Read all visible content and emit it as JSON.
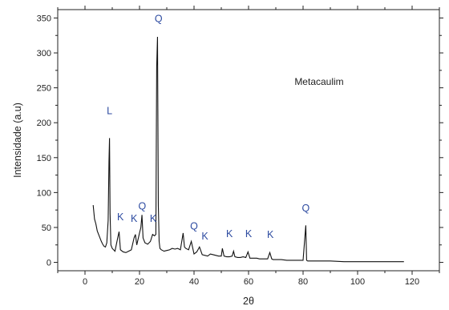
{
  "chart_data": {
    "type": "line",
    "title": "",
    "xlabel": "2θ",
    "ylabel": "Intensidade (a.u)",
    "xlim": [
      -10,
      130
    ],
    "ylim": [
      -12,
      362
    ],
    "x_ticks": [
      0,
      20,
      40,
      60,
      80,
      100,
      120
    ],
    "y_ticks": [
      0,
      50,
      100,
      150,
      200,
      250,
      300,
      350
    ],
    "grid": false,
    "legend": "none",
    "line_color": "#111111",
    "annotation_color": "#2c4aa0",
    "sample_label": "Metacaulim",
    "series": [
      {
        "x": [
          3,
          3.5,
          4,
          4.5,
          5,
          5.5,
          6,
          6.5,
          7,
          7.5,
          8,
          8.5,
          8.8,
          9.0,
          9.2,
          9.5,
          10,
          11,
          12,
          12.5,
          13,
          14,
          15,
          16,
          17,
          18,
          18.5,
          19,
          20,
          20.5,
          20.9,
          21.3,
          22,
          23,
          24,
          24.8,
          25.5,
          26,
          26.3,
          26.6,
          26.9,
          27.2,
          27.5,
          28,
          29,
          30,
          31,
          32,
          33,
          34,
          35,
          35.5,
          36,
          36.5,
          37,
          38,
          39,
          40,
          41,
          42,
          43,
          44,
          45,
          46,
          47,
          48,
          49,
          50,
          50.4,
          51,
          52,
          53,
          54,
          54.5,
          55,
          56,
          57,
          58,
          59,
          59.8,
          60.5,
          61,
          62,
          63,
          64,
          65,
          66,
          67,
          67.8,
          68.5,
          69,
          70,
          72,
          74,
          76,
          78,
          80,
          81.0,
          81.3,
          81.7,
          82.5,
          85,
          90,
          95,
          100,
          105,
          110,
          115,
          117
        ],
        "y": [
          82,
          62,
          55,
          45,
          40,
          35,
          30,
          26,
          23,
          22,
          28,
          60,
          145,
          178,
          70,
          25,
          20,
          16,
          35,
          44,
          18,
          15,
          14,
          16,
          18,
          35,
          40,
          25,
          42,
          50,
          68,
          35,
          28,
          26,
          30,
          40,
          38,
          40,
          280,
          323,
          82,
          30,
          20,
          18,
          16,
          17,
          18,
          20,
          19,
          20,
          18,
          30,
          42,
          22,
          20,
          18,
          30,
          12,
          15,
          22,
          11,
          10,
          9,
          12,
          11,
          10,
          9,
          9,
          20,
          9,
          8,
          8,
          9,
          16,
          8,
          7,
          7,
          8,
          7,
          15,
          6,
          6,
          6,
          6,
          5,
          5,
          5,
          5,
          14,
          5,
          4,
          4,
          4,
          3,
          3,
          3,
          3,
          53,
          3,
          2,
          2,
          2,
          2,
          1,
          1,
          1,
          1,
          1,
          1
        ]
      }
    ],
    "annotations": [
      {
        "label": "L",
        "x": 9,
        "y": 212
      },
      {
        "label": "Q",
        "x": 27,
        "y": 344
      },
      {
        "label": "Q",
        "x": 21,
        "y": 76
      },
      {
        "label": "K",
        "x": 13,
        "y": 60
      },
      {
        "label": "K",
        "x": 18,
        "y": 58
      },
      {
        "label": "K",
        "x": 25,
        "y": 58
      },
      {
        "label": "Q",
        "x": 40,
        "y": 47
      },
      {
        "label": "K",
        "x": 44,
        "y": 33
      },
      {
        "label": "K",
        "x": 53,
        "y": 36
      },
      {
        "label": "K",
        "x": 60,
        "y": 36
      },
      {
        "label": "K",
        "x": 68,
        "y": 35
      },
      {
        "label": "Q",
        "x": 81,
        "y": 73
      }
    ]
  }
}
